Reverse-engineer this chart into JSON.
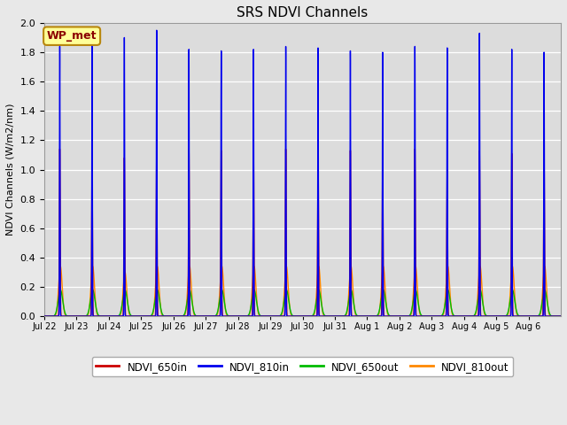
{
  "title": "SRS NDVI Channels",
  "ylabel": "NDVI Channels (W/m2/nm)",
  "ylim": [
    0,
    2.0
  ],
  "background_color": "#dcdcdc",
  "fig_bg": "#e8e8e8",
  "annotation_text": "WP_met",
  "annotation_color": "#8b0000",
  "annotation_bg": "#ffff99",
  "annotation_border": "#b8860b",
  "series": {
    "NDVI_650in": {
      "color": "#cc0000",
      "lw": 1.0
    },
    "NDVI_810in": {
      "color": "#0000ee",
      "lw": 1.0
    },
    "NDVI_650out": {
      "color": "#00bb00",
      "lw": 1.0
    },
    "NDVI_810out": {
      "color": "#ff8800",
      "lw": 1.0
    }
  },
  "legend_colors": {
    "NDVI_650in": "#cc0000",
    "NDVI_810in": "#0000ee",
    "NDVI_650out": "#00bb00",
    "NDVI_810out": "#ff8800"
  },
  "n_days": 16,
  "p650in": [
    1.14,
    1.1,
    1.08,
    1.13,
    1.14,
    1.13,
    1.14,
    1.14,
    1.14,
    1.13,
    1.13,
    1.14,
    1.0,
    1.13,
    1.11,
    1.12
  ],
  "p810in": [
    1.84,
    1.84,
    1.9,
    1.95,
    1.82,
    1.81,
    1.82,
    1.84,
    1.83,
    1.81,
    1.8,
    1.84,
    1.83,
    1.93,
    1.82,
    1.8
  ],
  "p650out": [
    0.18,
    0.18,
    0.18,
    0.18,
    0.18,
    0.18,
    0.18,
    0.18,
    0.18,
    0.18,
    0.18,
    0.18,
    0.18,
    0.18,
    0.18,
    0.18
  ],
  "p810out": [
    0.34,
    0.34,
    0.3,
    0.34,
    0.34,
    0.34,
    0.34,
    0.34,
    0.34,
    0.34,
    0.34,
    0.34,
    0.34,
    0.34,
    0.34,
    0.34
  ],
  "x_tick_labels": [
    "Jul 22",
    "Jul 23",
    "Jul 24",
    "Jul 25",
    "Jul 26",
    "Jul 27",
    "Jul 28",
    "Jul 29",
    "Jul 30",
    "Jul 31",
    "Aug 1",
    "Aug 2",
    "Aug 3",
    "Aug 4",
    "Aug 5",
    "Aug 6"
  ]
}
